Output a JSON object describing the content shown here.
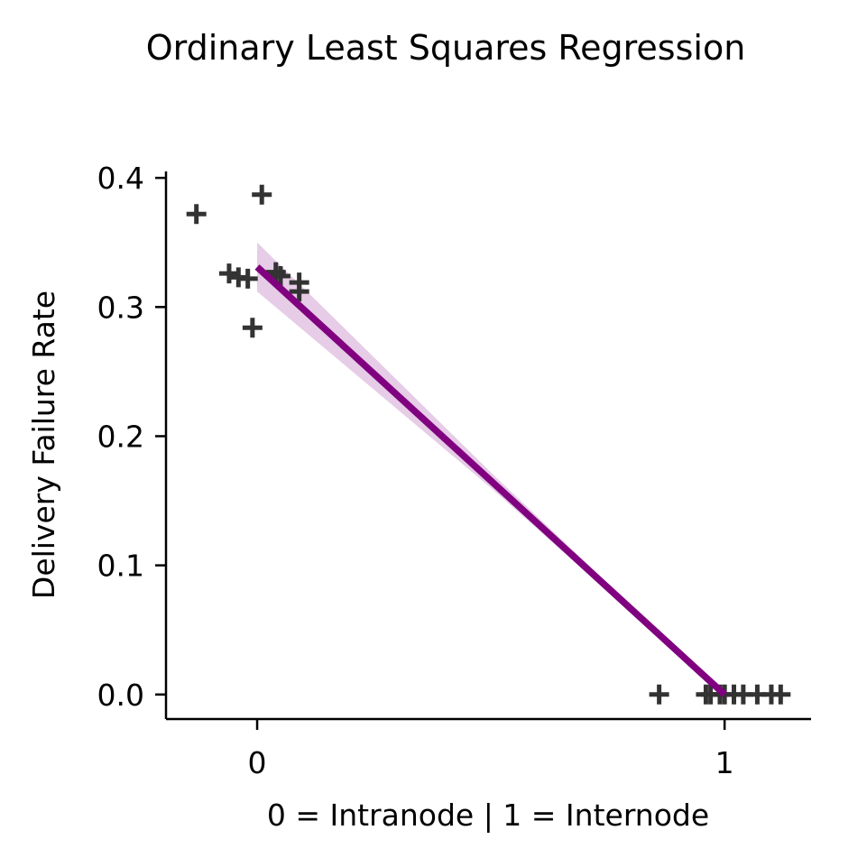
{
  "chart_data": {
    "type": "scatter",
    "title": "Ordinary Least Squares Regression",
    "xlabel": "0 = Intranode | 1 = Internode",
    "ylabel": "Delivery Failure Rate",
    "xlim": [
      -0.195,
      1.185
    ],
    "ylim": [
      -0.019,
      0.405
    ],
    "x_ticks": [
      0,
      1
    ],
    "x_tick_labels": [
      "0",
      "1"
    ],
    "y_ticks": [
      0.0,
      0.1,
      0.2,
      0.3,
      0.4
    ],
    "y_tick_labels": [
      "0.0",
      "0.1",
      "0.2",
      "0.3",
      "0.4"
    ],
    "grid": false,
    "marker": "plus",
    "marker_color": "#333333",
    "regression_color": "#800080",
    "ci_color": "#e6cce6",
    "points": [
      {
        "x": -0.13,
        "y": 0.372
      },
      {
        "x": 0.01,
        "y": 0.387
      },
      {
        "x": -0.06,
        "y": 0.326
      },
      {
        "x": -0.04,
        "y": 0.323
      },
      {
        "x": -0.02,
        "y": 0.322
      },
      {
        "x": 0.04,
        "y": 0.327
      },
      {
        "x": 0.05,
        "y": 0.324
      },
      {
        "x": 0.09,
        "y": 0.319
      },
      {
        "x": 0.09,
        "y": 0.312
      },
      {
        "x": -0.01,
        "y": 0.284
      },
      {
        "x": 0.86,
        "y": 0.0
      },
      {
        "x": 0.96,
        "y": 0.0
      },
      {
        "x": 0.97,
        "y": 0.0
      },
      {
        "x": 0.99,
        "y": 0.0
      },
      {
        "x": 1.0,
        "y": 0.0
      },
      {
        "x": 1.02,
        "y": 0.0
      },
      {
        "x": 1.04,
        "y": 0.0
      },
      {
        "x": 1.07,
        "y": 0.0
      },
      {
        "x": 1.1,
        "y": 0.0
      },
      {
        "x": 1.12,
        "y": 0.0
      }
    ],
    "regression_line": {
      "x": [
        0,
        1
      ],
      "y": [
        0.331,
        0.0
      ]
    },
    "confidence_band": {
      "x": [
        0,
        0.5,
        1
      ],
      "lower": [
        0.312,
        0.16,
        0.0
      ],
      "upper": [
        0.35,
        0.172,
        0.0
      ]
    }
  }
}
